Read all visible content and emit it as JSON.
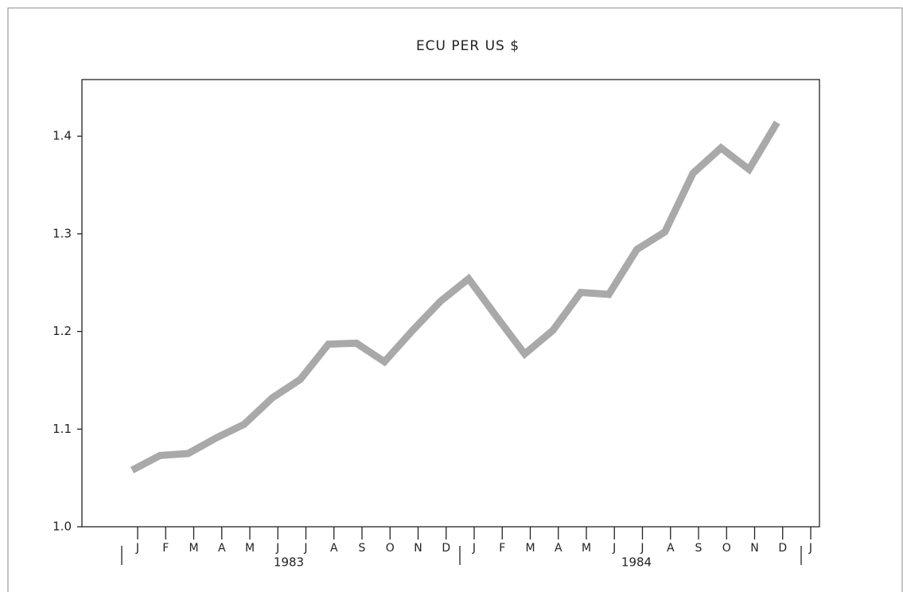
{
  "chart_data": {
    "type": "line",
    "title": "ECU PER US $",
    "categories": [
      "J",
      "F",
      "M",
      "A",
      "M",
      "J",
      "J",
      "A",
      "S",
      "O",
      "N",
      "D",
      "J",
      "F",
      "M",
      "A",
      "M",
      "J",
      "J",
      "A",
      "S",
      "O",
      "N",
      "D",
      "J"
    ],
    "values": [
      1.058,
      1.073,
      1.075,
      1.091,
      1.105,
      1.132,
      1.151,
      1.187,
      1.188,
      1.169,
      1.201,
      1.231,
      1.254,
      1.215,
      1.177,
      1.201,
      1.24,
      1.238,
      1.284,
      1.302,
      1.362,
      1.388,
      1.366,
      1.414,
      null
    ],
    "years": [
      "1983",
      "1984"
    ],
    "color": "#a9a9a9",
    "ylim": [
      1.0,
      1.458
    ],
    "yticks": [
      {
        "value": 1.0,
        "label": "1.0"
      },
      1.1,
      1.2,
      1.3,
      1.4
    ]
  }
}
